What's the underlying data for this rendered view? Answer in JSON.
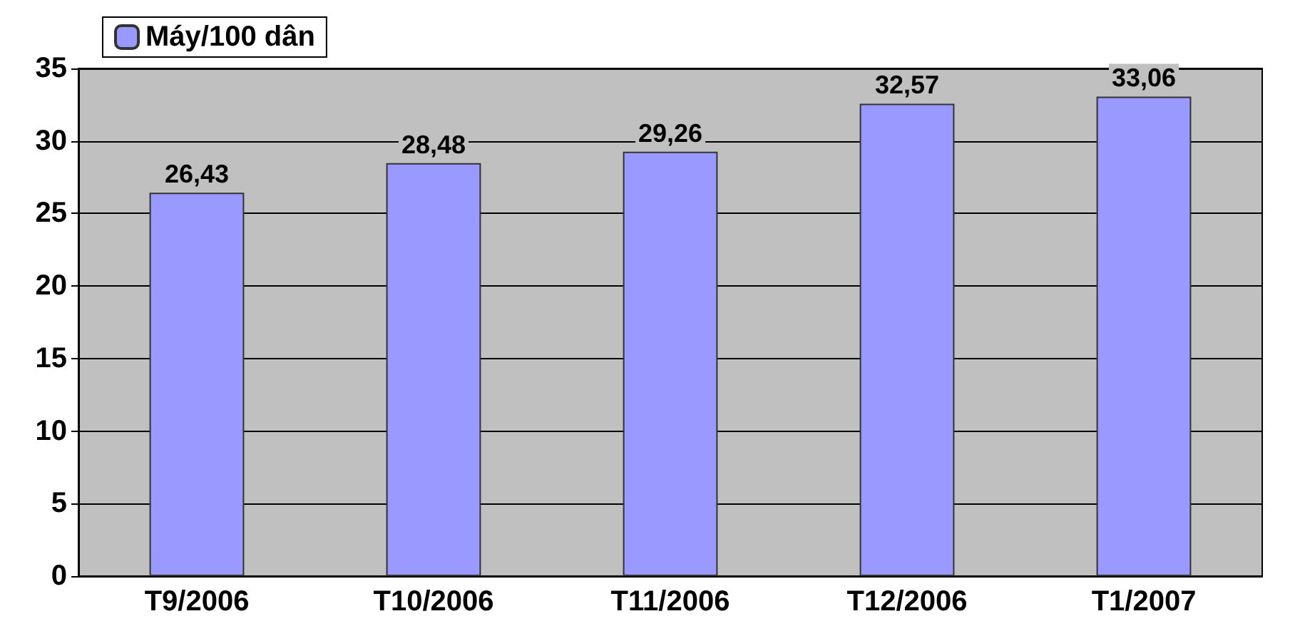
{
  "chart_data": {
    "type": "bar",
    "categories": [
      "T9/2006",
      "T10/2006",
      "T11/2006",
      "T12/2006",
      "T1/2007"
    ],
    "series": [
      {
        "name": "Máy/100 dân",
        "color": "#9999ff",
        "values": [
          26.43,
          28.48,
          29.26,
          32.57,
          33.06
        ],
        "value_labels": [
          "26,43",
          "28,48",
          "29,26",
          "32,57",
          "33,06"
        ]
      }
    ],
    "ylim": [
      0,
      35
    ],
    "yticks": [
      0,
      5,
      10,
      15,
      20,
      25,
      30,
      35
    ],
    "grid": "y",
    "legend": "top left"
  }
}
